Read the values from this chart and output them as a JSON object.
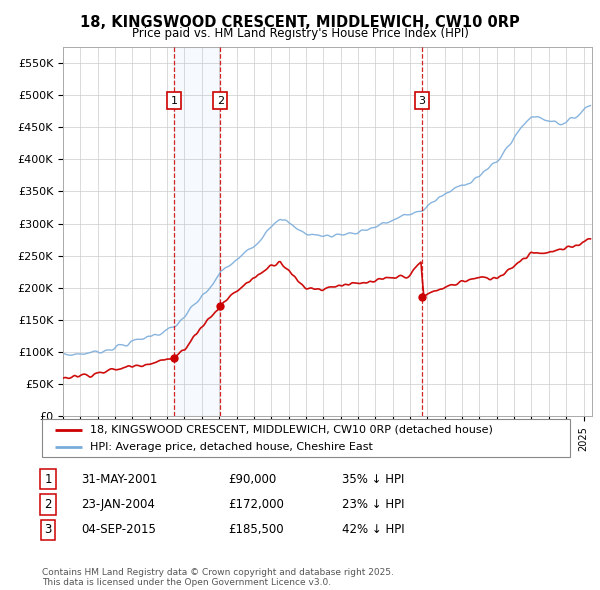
{
  "title_line1": "18, KINGSWOOD CRESCENT, MIDDLEWICH, CW10 0RP",
  "title_line2": "Price paid vs. HM Land Registry's House Price Index (HPI)",
  "ylabel_ticks": [
    "£0",
    "£50K",
    "£100K",
    "£150K",
    "£200K",
    "£250K",
    "£300K",
    "£350K",
    "£400K",
    "£450K",
    "£500K",
    "£550K"
  ],
  "ytick_values": [
    0,
    50000,
    100000,
    150000,
    200000,
    250000,
    300000,
    350000,
    400000,
    450000,
    500000,
    550000
  ],
  "legend_line1": "18, KINGSWOOD CRESCENT, MIDDLEWICH, CW10 0RP (detached house)",
  "legend_line2": "HPI: Average price, detached house, Cheshire East",
  "sale_color": "#cc0000",
  "hpi_color": "#7aacdb",
  "sale_points": [
    {
      "label": "1",
      "date_x": 2001.42,
      "price": 90000
    },
    {
      "label": "2",
      "date_x": 2004.07,
      "price": 172000
    },
    {
      "label": "3",
      "date_x": 2015.67,
      "price": 185500
    }
  ],
  "table_rows": [
    {
      "num": "1",
      "date": "31-MAY-2001",
      "price": "£90,000",
      "note": "35% ↓ HPI"
    },
    {
      "num": "2",
      "date": "23-JAN-2004",
      "price": "£172,000",
      "note": "23% ↓ HPI"
    },
    {
      "num": "3",
      "date": "04-SEP-2015",
      "price": "£185,500",
      "note": "42% ↓ HPI"
    }
  ],
  "footer_text": "Contains HM Land Registry data © Crown copyright and database right 2025.\nThis data is licensed under the Open Government Licence v3.0.",
  "xmin": 1995,
  "xmax": 2025.5,
  "ymin": 0,
  "ymax": 575000
}
